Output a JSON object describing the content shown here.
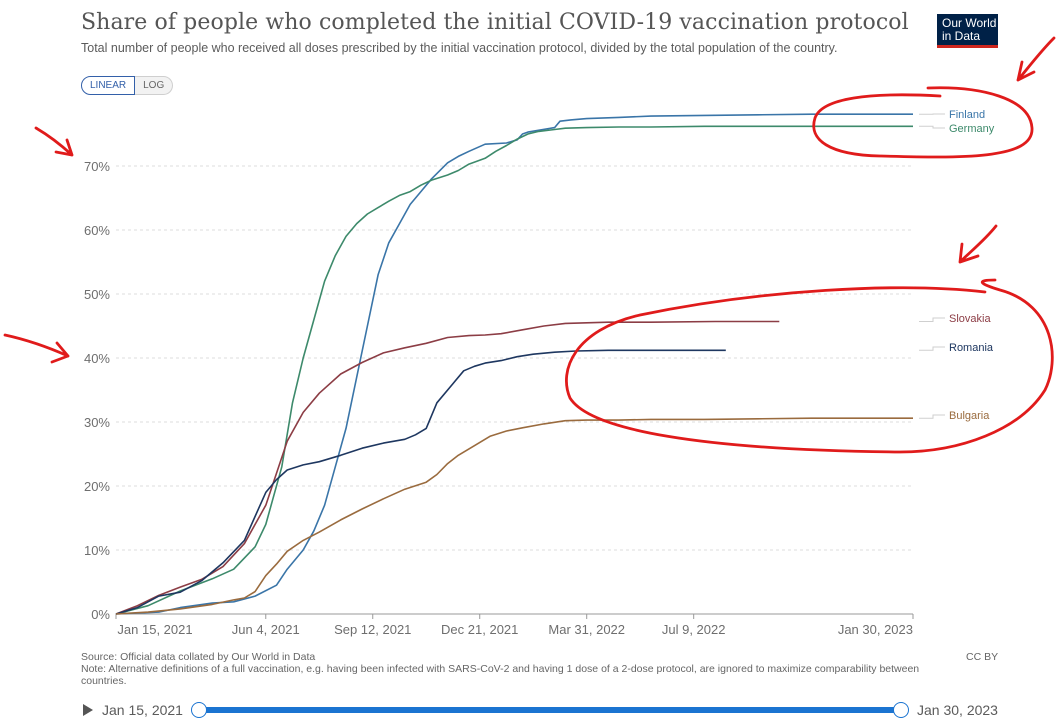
{
  "header": {
    "title": "Share of people who completed the initial COVID-19 vaccination protocol",
    "subtitle": "Total number of people who received all doses prescribed by the initial vaccination protocol, divided by the total population of the country.",
    "logo_line1": "Our World",
    "logo_line2": "in Data"
  },
  "toggle": {
    "linear": "LINEAR",
    "log": "LOG"
  },
  "footer": {
    "source": "Source: Official data collated by Our World in Data",
    "note": "Note: Alternative definitions of a full vaccination, e.g. having been infected with SARS-CoV-2 and having 1 dose of a 2-dose protocol, are ignored to maximize comparability between countries.",
    "license": "CC BY"
  },
  "timeline": {
    "start": "Jan 15, 2021",
    "end": "Jan 30, 2023"
  },
  "colors": {
    "Finland": "#3a75a8",
    "Germany": "#3d8a6b",
    "Slovakia": "#8c3d45",
    "Romania": "#1e3760",
    "Bulgaria": "#9a6b3e",
    "annotation": "#e01b1b",
    "grid": "#dddddd"
  },
  "chart_data": {
    "type": "line",
    "title": "Share of people who completed the initial COVID-19 vaccination protocol",
    "ylabel": "",
    "xlabel": "",
    "ylim": [
      0,
      78
    ],
    "y_ticks": [
      "0%",
      "10%",
      "20%",
      "30%",
      "40%",
      "50%",
      "60%",
      "70%"
    ],
    "y_tick_values": [
      0,
      10,
      20,
      30,
      40,
      50,
      60,
      70
    ],
    "x_ticks": [
      "Jan 15, 2021",
      "Jun 4, 2021",
      "Sep 12, 2021",
      "Dec 21, 2021",
      "Mar 31, 2022",
      "Jul 9, 2022",
      "Jan 30, 2023"
    ],
    "x_tick_days": [
      0,
      140,
      240,
      340,
      440,
      540,
      745
    ],
    "x_unit": "days since Jan 15, 2021",
    "grid": true,
    "legend": "right (end labels)",
    "series": [
      {
        "name": "Finland",
        "x": [
          0,
          40,
          60,
          90,
          110,
          130,
          150,
          160,
          175,
          185,
          195,
          205,
          215,
          225,
          235,
          245,
          255,
          265,
          275,
          285,
          295,
          310,
          320,
          330,
          345,
          365,
          375,
          380,
          385,
          410,
          415,
          425,
          440,
          470,
          500,
          550,
          600,
          650,
          745
        ],
        "y": [
          0,
          0.3,
          1,
          1.7,
          1.9,
          2.8,
          4.5,
          7,
          10,
          13,
          17,
          23,
          29,
          37,
          45,
          53,
          58,
          61,
          64,
          66,
          68,
          70.5,
          71.5,
          72.3,
          73.4,
          73.6,
          74.1,
          75,
          75.3,
          76,
          77,
          77.2,
          77.4,
          77.6,
          77.8,
          77.9,
          78,
          78.1,
          78.1
        ]
      },
      {
        "name": "Germany",
        "x": [
          0,
          30,
          60,
          90,
          110,
          130,
          140,
          155,
          165,
          175,
          185,
          195,
          205,
          215,
          225,
          235,
          245,
          255,
          265,
          275,
          285,
          295,
          310,
          320,
          330,
          345,
          355,
          365,
          375,
          385,
          395,
          410,
          420,
          440,
          470,
          500,
          550,
          600,
          650,
          745
        ],
        "y": [
          0,
          1.3,
          3.6,
          5.5,
          7,
          10.5,
          14,
          23,
          33,
          40,
          46,
          52,
          56,
          59,
          61,
          62.5,
          63.5,
          64.5,
          65.4,
          66,
          67,
          67.8,
          68.6,
          69.3,
          70.3,
          71.2,
          72.3,
          73.2,
          74.2,
          75,
          75.4,
          75.7,
          75.9,
          76,
          76.1,
          76.1,
          76.2,
          76.2,
          76.2,
          76.2
        ]
      },
      {
        "name": "Slovakia",
        "x": [
          0,
          20,
          40,
          60,
          80,
          100,
          120,
          140,
          160,
          175,
          190,
          210,
          230,
          250,
          270,
          290,
          310,
          330,
          345,
          360,
          380,
          400,
          420,
          440,
          460,
          500,
          560,
          620
        ],
        "y": [
          0,
          1.3,
          2.9,
          4.2,
          5.4,
          7.4,
          11,
          17,
          27,
          31.5,
          34.5,
          37.5,
          39.3,
          40.8,
          41.6,
          42.3,
          43.2,
          43.5,
          43.6,
          43.8,
          44.4,
          45,
          45.4,
          45.5,
          45.6,
          45.6,
          45.7,
          45.7
        ]
      },
      {
        "name": "Romania",
        "x": [
          0,
          20,
          40,
          60,
          80,
          100,
          120,
          140,
          150,
          160,
          175,
          190,
          210,
          230,
          250,
          270,
          280,
          290,
          300,
          315,
          325,
          335,
          345,
          360,
          375,
          390,
          410,
          430,
          460,
          500,
          570
        ],
        "y": [
          0,
          1,
          2.8,
          3.4,
          5.2,
          8,
          11.5,
          19,
          21,
          22.5,
          23.3,
          23.8,
          24.8,
          25.9,
          26.7,
          27.3,
          28,
          29,
          33,
          36,
          38,
          38.7,
          39.2,
          39.6,
          40.2,
          40.6,
          40.9,
          41.1,
          41.2,
          41.2,
          41.2
        ]
      },
      {
        "name": "Bulgaria",
        "x": [
          0,
          30,
          60,
          90,
          110,
          120,
          130,
          140,
          150,
          160,
          175,
          190,
          210,
          230,
          250,
          270,
          290,
          300,
          310,
          320,
          335,
          350,
          365,
          380,
          400,
          420,
          440,
          470,
          500,
          550,
          600,
          650,
          745
        ],
        "y": [
          0,
          0.3,
          0.8,
          1.5,
          2.2,
          2.5,
          3.5,
          6,
          7.8,
          9.8,
          11.5,
          12.8,
          14.7,
          16.4,
          18,
          19.5,
          20.6,
          21.8,
          23.5,
          24.8,
          26.3,
          27.8,
          28.6,
          29.1,
          29.7,
          30.2,
          30.3,
          30.3,
          30.4,
          30.4,
          30.5,
          30.6,
          30.6
        ]
      }
    ]
  }
}
